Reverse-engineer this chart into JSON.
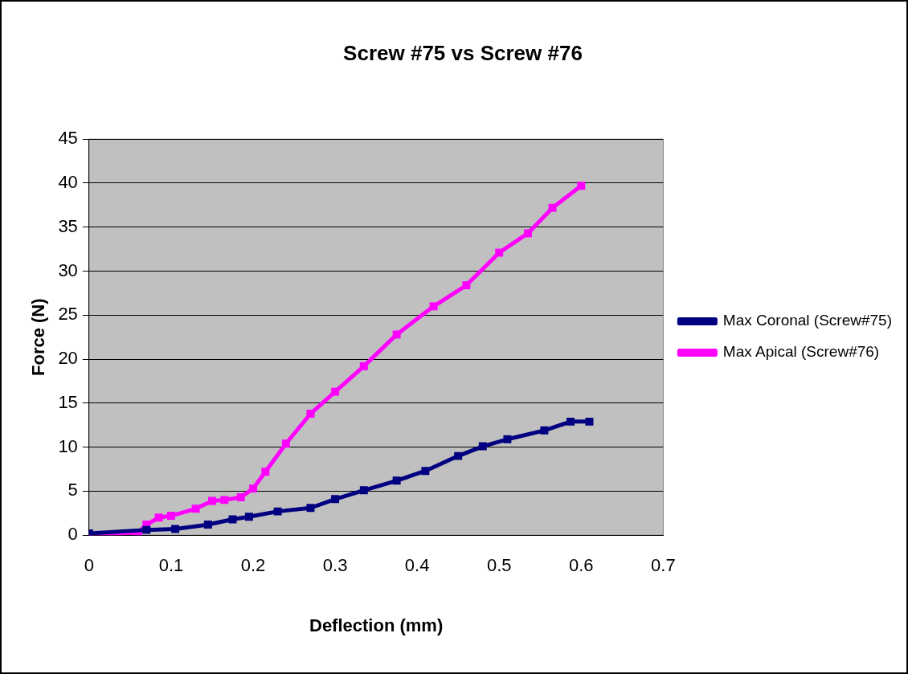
{
  "chart_data": {
    "type": "line",
    "title": "Screw #75 vs Screw #76",
    "xlabel": "Deflection (mm)",
    "ylabel": "Force (N)",
    "xlim": [
      0,
      0.7
    ],
    "xticks": [
      0,
      0.1,
      0.2,
      0.3,
      0.4,
      0.5,
      0.6,
      0.7
    ],
    "ylim": [
      0,
      45
    ],
    "yticks": [
      0,
      5,
      10,
      15,
      20,
      25,
      30,
      35,
      40,
      45
    ],
    "grid": "y",
    "legend": "right",
    "marker": "square",
    "line_style": "solid",
    "series": [
      {
        "name": "Max Coronal (Screw#75)",
        "color": "#000080",
        "x": [
          0,
          0.07,
          0.105,
          0.145,
          0.175,
          0.195,
          0.23,
          0.27,
          0.3,
          0.335,
          0.375,
          0.41,
          0.45,
          0.48,
          0.51,
          0.555,
          0.587,
          0.61
        ],
        "values": [
          0.2,
          0.6,
          0.7,
          1.2,
          1.8,
          2.1,
          2.7,
          3.1,
          4.1,
          5.1,
          6.2,
          7.3,
          9,
          10.1,
          10.9,
          11.9,
          12.9,
          12.9
        ]
      },
      {
        "name": "Max Apical (Screw#76)",
        "color": "#ff00ff",
        "x": [
          0,
          0.06,
          0.07,
          0.085,
          0.1,
          0.13,
          0.15,
          0.165,
          0.185,
          0.2,
          0.215,
          0.24,
          0.27,
          0.3,
          0.335,
          0.375,
          0.42,
          0.46,
          0.5,
          0.535,
          0.565,
          0.6
        ],
        "values": [
          0,
          0.3,
          1.2,
          2,
          2.2,
          3,
          3.9,
          4,
          4.3,
          5.3,
          7.2,
          10.4,
          13.8,
          16.3,
          19.2,
          22.8,
          26,
          28.4,
          32.1,
          34.3,
          37.2,
          39.7
        ]
      }
    ]
  }
}
